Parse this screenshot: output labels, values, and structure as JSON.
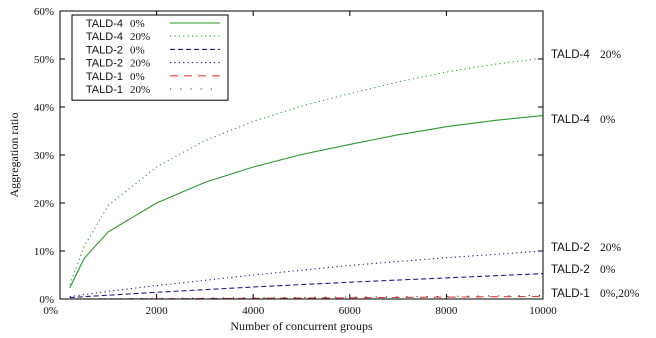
{
  "chart_data": {
    "type": "line",
    "xlabel": "Number of concurrent groups",
    "ylabel": "Aggregation ratio",
    "xlim": [
      0,
      10000
    ],
    "ylim": [
      0,
      60
    ],
    "x_ticks": [
      "0%",
      "2000",
      "4000",
      "6000",
      "8000",
      "10000"
    ],
    "x_tick_values": [
      0,
      2000,
      4000,
      6000,
      8000,
      10000
    ],
    "y_ticks": [
      "0%",
      "10%",
      "20%",
      "30%",
      "40%",
      "50%",
      "60%"
    ],
    "y_tick_values": [
      0,
      10,
      20,
      30,
      40,
      50,
      60
    ],
    "legend_position": "top-left",
    "series": [
      {
        "name": "TALD-4",
        "rate": "0%",
        "color": "#2a9a2a",
        "dash": "solid",
        "x": [
          200,
          500,
          1000,
          2000,
          3000,
          4000,
          5000,
          6000,
          7000,
          8000,
          9000,
          10000
        ],
        "values": [
          2.3,
          8.5,
          14,
          20,
          24.3,
          27.5,
          30.1,
          32.2,
          34.2,
          35.9,
          37.2,
          38.2
        ]
      },
      {
        "name": "TALD-4",
        "rate": "20%",
        "color": "#2a9a2a",
        "dash": "dotted",
        "x": [
          200,
          500,
          1000,
          2000,
          3000,
          4000,
          5000,
          6000,
          7000,
          8000,
          9000,
          10000
        ],
        "values": [
          3,
          11,
          19.5,
          27.5,
          33,
          37,
          40.2,
          42.8,
          45.2,
          47.3,
          48.9,
          50.2
        ]
      },
      {
        "name": "TALD-2",
        "rate": "0%",
        "color": "#1c1c8c",
        "dash": "dashed",
        "x": [
          200,
          1000,
          2000,
          4000,
          6000,
          8000,
          10000
        ],
        "values": [
          0.3,
          0.8,
          1.4,
          2.5,
          3.5,
          4.4,
          5.3
        ]
      },
      {
        "name": "TALD-2",
        "rate": "20%",
        "color": "#1c1c8c",
        "dash": "dotted",
        "x": [
          200,
          1000,
          2000,
          4000,
          6000,
          8000,
          10000
        ],
        "values": [
          0.5,
          1.6,
          2.8,
          5,
          7,
          8.6,
          10
        ]
      },
      {
        "name": "TALD-1",
        "rate": "0%",
        "color": "#e04040",
        "dash": "longdash",
        "x": [
          200,
          2000,
          4000,
          6000,
          8000,
          10000
        ],
        "values": [
          0,
          0.05,
          0.15,
          0.25,
          0.4,
          0.55
        ]
      },
      {
        "name": "TALD-1",
        "rate": "20%",
        "color": "#333333",
        "dash": "sparse",
        "x": [
          200,
          2000,
          4000,
          6000,
          8000,
          10000
        ],
        "values": [
          0,
          0.1,
          0.25,
          0.4,
          0.55,
          0.75
        ]
      }
    ],
    "annotations": [
      {
        "name": "TALD-4",
        "rate": "20%",
        "anchor_y": 51
      },
      {
        "name": "TALD-4",
        "rate": "0%",
        "anchor_y": 37.5
      },
      {
        "name": "TALD-2",
        "rate": "20%",
        "anchor_y": 10.8
      },
      {
        "name": "TALD-2",
        "rate": "0%",
        "anchor_y": 6.3
      },
      {
        "name": "TALD-1",
        "rate": "0%,20%",
        "anchor_y": 1.2
      }
    ]
  }
}
